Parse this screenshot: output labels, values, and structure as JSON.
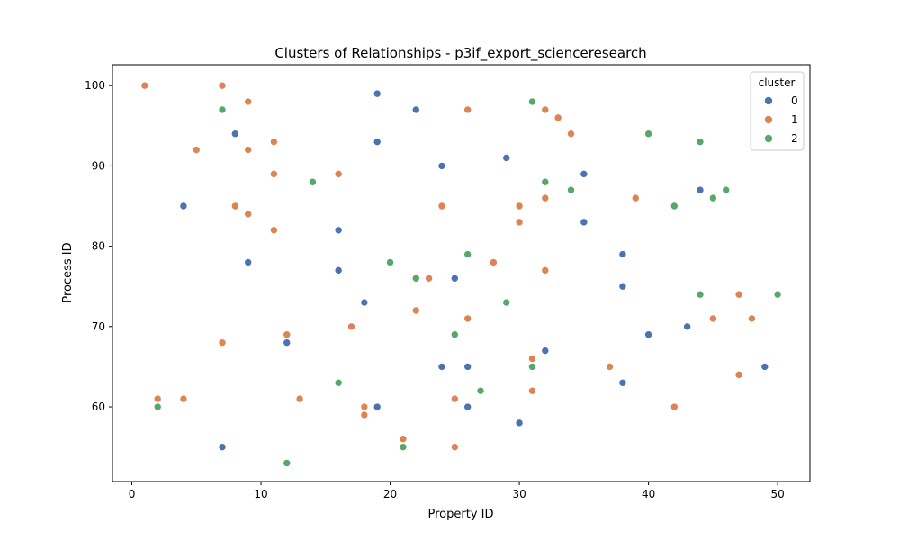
{
  "chart_data": {
    "type": "scatter",
    "title": "Clusters of Relationships - p3if_export_scienceresearch",
    "xlabel": "Property ID",
    "ylabel": "Process ID",
    "xlim": [
      -1.5,
      52.5
    ],
    "ylim": [
      50.7,
      102.6
    ],
    "xticks": [
      0,
      10,
      20,
      30,
      40,
      50
    ],
    "yticks": [
      60,
      70,
      80,
      90,
      100
    ],
    "grid": false,
    "legend": {
      "title": "cluster",
      "placement": "top-right"
    },
    "series": [
      {
        "name": "0",
        "color": "#4c72b0",
        "points": [
          [
            19,
            99
          ],
          [
            22,
            97
          ],
          [
            8,
            94
          ],
          [
            19,
            93
          ],
          [
            29,
            91
          ],
          [
            24,
            90
          ],
          [
            35,
            89
          ],
          [
            44,
            87
          ],
          [
            4,
            85
          ],
          [
            35,
            83
          ],
          [
            16,
            82
          ],
          [
            38,
            79
          ],
          [
            9,
            78
          ],
          [
            16,
            77
          ],
          [
            25,
            76
          ],
          [
            38,
            75
          ],
          [
            18,
            73
          ],
          [
            43,
            70
          ],
          [
            40,
            69
          ],
          [
            12,
            68
          ],
          [
            32,
            67
          ],
          [
            24,
            65
          ],
          [
            26,
            65
          ],
          [
            49,
            65
          ],
          [
            38,
            63
          ],
          [
            19,
            60
          ],
          [
            26,
            60
          ],
          [
            30,
            58
          ],
          [
            7,
            55
          ]
        ]
      },
      {
        "name": "1",
        "color": "#dd8452",
        "points": [
          [
            1,
            100
          ],
          [
            7,
            100
          ],
          [
            9,
            98
          ],
          [
            26,
            97
          ],
          [
            32,
            97
          ],
          [
            33,
            96
          ],
          [
            34,
            94
          ],
          [
            11,
            93
          ],
          [
            5,
            92
          ],
          [
            9,
            92
          ],
          [
            11,
            89
          ],
          [
            16,
            89
          ],
          [
            39,
            86
          ],
          [
            32,
            86
          ],
          [
            8,
            85
          ],
          [
            24,
            85
          ],
          [
            30,
            85
          ],
          [
            9,
            84
          ],
          [
            30,
            83
          ],
          [
            11,
            82
          ],
          [
            28,
            78
          ],
          [
            32,
            77
          ],
          [
            23,
            76
          ],
          [
            47,
            74
          ],
          [
            22,
            72
          ],
          [
            26,
            71
          ],
          [
            45,
            71
          ],
          [
            48,
            71
          ],
          [
            17,
            70
          ],
          [
            12,
            69
          ],
          [
            7,
            68
          ],
          [
            37,
            65
          ],
          [
            31,
            66
          ],
          [
            31,
            62
          ],
          [
            47,
            64
          ],
          [
            2,
            61
          ],
          [
            4,
            61
          ],
          [
            13,
            61
          ],
          [
            25,
            61
          ],
          [
            18,
            60
          ],
          [
            42,
            60
          ],
          [
            18,
            59
          ],
          [
            21,
            56
          ],
          [
            25,
            55
          ]
        ]
      },
      {
        "name": "2",
        "color": "#55a868",
        "points": [
          [
            31,
            98
          ],
          [
            7,
            97
          ],
          [
            40,
            94
          ],
          [
            44,
            93
          ],
          [
            14,
            88
          ],
          [
            32,
            88
          ],
          [
            34,
            87
          ],
          [
            46,
            87
          ],
          [
            45,
            86
          ],
          [
            42,
            85
          ],
          [
            26,
            79
          ],
          [
            20,
            78
          ],
          [
            22,
            76
          ],
          [
            44,
            74
          ],
          [
            50,
            74
          ],
          [
            29,
            73
          ],
          [
            25,
            69
          ],
          [
            31,
            65
          ],
          [
            16,
            63
          ],
          [
            27,
            62
          ],
          [
            2,
            60
          ],
          [
            21,
            55
          ],
          [
            12,
            53
          ]
        ]
      }
    ]
  }
}
